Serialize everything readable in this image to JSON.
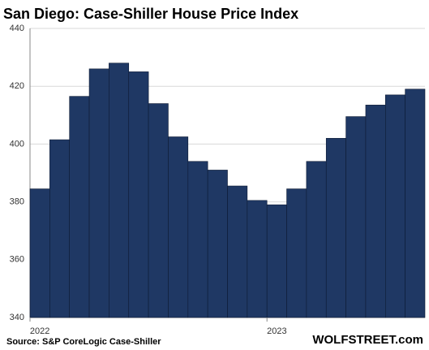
{
  "chart_data": {
    "type": "bar",
    "title": "San Diego: Case-Shiller House Price Index",
    "categories": [
      "2022",
      null,
      null,
      null,
      null,
      null,
      null,
      null,
      null,
      null,
      null,
      null,
      "2023",
      null,
      null,
      null,
      null,
      null,
      null,
      null
    ],
    "values": [
      384.5,
      401.5,
      416.5,
      426,
      428,
      425,
      414,
      402.5,
      394,
      391,
      385.5,
      380.5,
      379,
      384.5,
      394,
      402,
      409.5,
      413.5,
      417,
      419
    ],
    "color": "#1f3864",
    "ylim": [
      340,
      440
    ],
    "yticks": [
      340,
      360,
      380,
      400,
      420,
      440
    ],
    "grid": true,
    "source": "Source: S&P CoreLogic Case-Shiller",
    "watermark": "WOLFSTREET.com"
  }
}
